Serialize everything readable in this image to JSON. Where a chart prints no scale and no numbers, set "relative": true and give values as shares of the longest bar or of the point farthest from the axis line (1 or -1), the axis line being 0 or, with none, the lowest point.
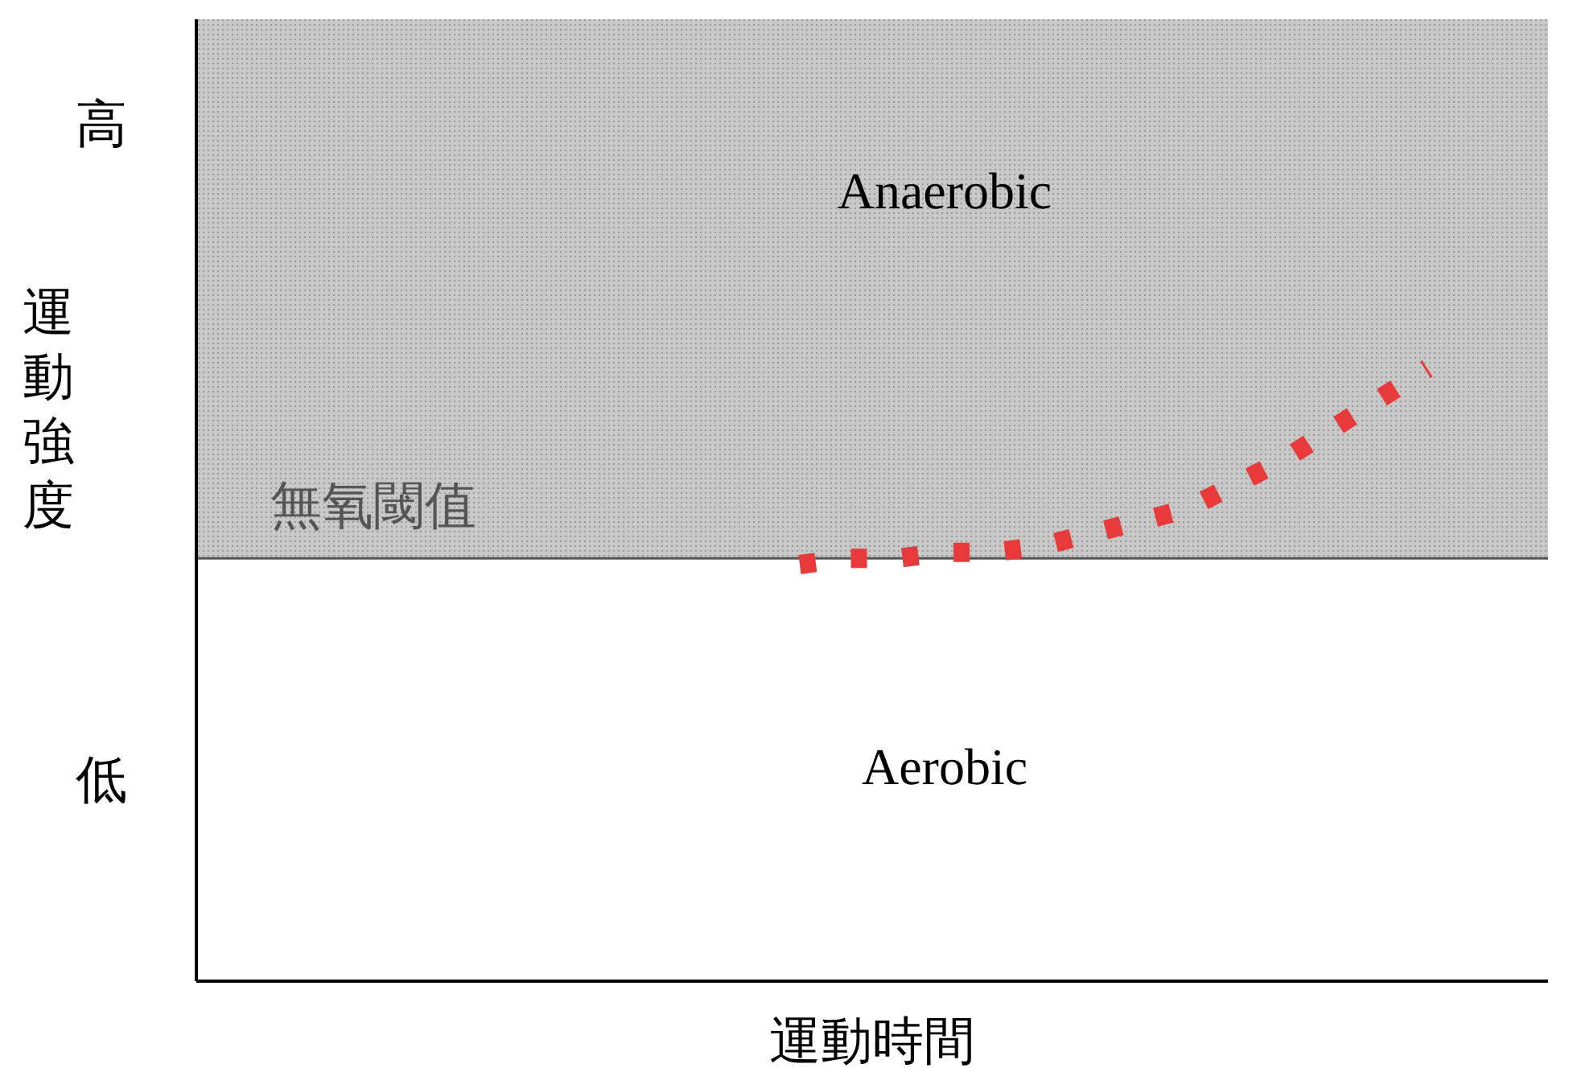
{
  "chart_data": {
    "type": "line",
    "relative": true,
    "xlabel": "運動時間",
    "ylabel": "運動強度",
    "categories": [
      null,
      null,
      null,
      null,
      null,
      null,
      null,
      null,
      null,
      null,
      null,
      null,
      null,
      null,
      null,
      null,
      null,
      null,
      null,
      null,
      null,
      null,
      null,
      null,
      null,
      null,
      null,
      null
    ],
    "series": [
      {
        "color": "#e83a3a",
        "values": [
          null,
          null,
          null,
          null,
          null,
          null,
          null,
          null,
          null,
          null,
          null,
          null,
          0.68,
          0.69,
          0.69,
          0.7,
          0.7,
          0.71,
          0.73,
          0.75,
          0.77,
          0.81,
          0.85,
          0.9,
          0.95,
          1.0,
          null,
          null
        ]
      }
    ],
    "line_style": "dotted",
    "marker": "none",
    "bands": [
      {
        "axis": "y",
        "from": 0.69,
        "to": 1.57,
        "label": "Anaerobic",
        "color": "#c8c8c8"
      }
    ],
    "ref_lines": [
      {
        "axis": "y",
        "value": 0.69,
        "label": "無氧閾值",
        "color": "#555555"
      }
    ],
    "annotations": [
      "Aerobic",
      "高",
      "低"
    ]
  }
}
